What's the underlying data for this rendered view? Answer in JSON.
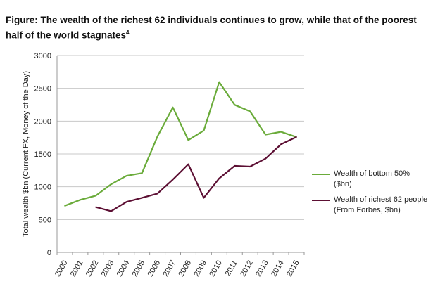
{
  "chart_data": {
    "type": "line",
    "title": "Figure: The wealth of the richest 62 individuals continues to grow, while that of the poorest half of the world stagnates",
    "title_footnote": "4",
    "xlabel": "",
    "ylabel": "Total wealth $bn (Current FX, Money of the Day)",
    "ylim": [
      0,
      3000
    ],
    "yticks": [
      "0",
      "500",
      "1000",
      "1500",
      "2000",
      "2500",
      "3000"
    ],
    "x": [
      "2000",
      "2001",
      "2002",
      "2003",
      "2004",
      "2005",
      "2006",
      "2007",
      "2008",
      "2009",
      "2010",
      "2011",
      "2012",
      "2013",
      "2014",
      "2015"
    ],
    "grid": true,
    "legend_position": "right",
    "series": [
      {
        "name": "Wealth of bottom 50% ($bn)",
        "color": "#6aab3a",
        "values": [
          709,
          800,
          863,
          1038,
          1167,
          1207,
          1765,
          2209,
          1711,
          1855,
          2596,
          2248,
          2148,
          1794,
          1837,
          1758
        ]
      },
      {
        "name": "Wealth of richest 62 people (From Forbes, $bn)",
        "color": "#5c0f33",
        "values": [
          null,
          null,
          691,
          627,
          770,
          831,
          895,
          1110,
          1343,
          831,
          1128,
          1318,
          1307,
          1429,
          1647,
          1758
        ]
      }
    ]
  }
}
